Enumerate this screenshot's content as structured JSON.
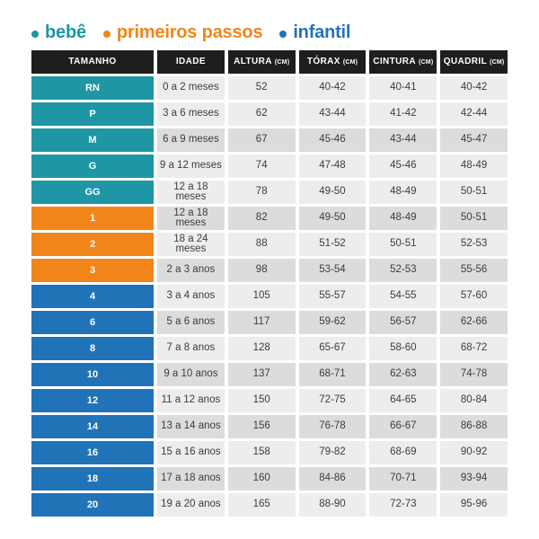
{
  "legend": {
    "items": [
      {
        "label": "bebê",
        "group": "bebe"
      },
      {
        "label": "primeiros passos",
        "group": "primeiros_passos"
      },
      {
        "label": "infantil",
        "group": "infantil"
      }
    ]
  },
  "colors": {
    "bebe": "#1E96A4",
    "primeiros_passos": "#F28519",
    "infantil": "#2173B8",
    "header_bg": "#1E1E1C",
    "header_text": "#FFFFFF",
    "size_text": "#FFFFFF",
    "cell_light": "#EDEDED",
    "cell_dark": "#DCDCDC",
    "cell_text": "#3C3C3C"
  },
  "chart_data": {
    "type": "table",
    "columns": [
      {
        "key": "size",
        "label": "TAMANHO",
        "unit": ""
      },
      {
        "key": "age",
        "label": "IDADE",
        "unit": ""
      },
      {
        "key": "altura",
        "label": "ALTURA",
        "unit": "(CM)"
      },
      {
        "key": "torax",
        "label": "TÓRAX",
        "unit": "(CM)"
      },
      {
        "key": "cintura",
        "label": "CINTURA",
        "unit": "(CM)"
      },
      {
        "key": "quadril",
        "label": "QUADRIL",
        "unit": "(CM)"
      }
    ],
    "rows": [
      {
        "size": "RN",
        "group": "bebe",
        "age": "0 a 2 meses",
        "altura": "52",
        "torax": "40-42",
        "cintura": "40-41",
        "quadril": "40-42",
        "shade": "light"
      },
      {
        "size": "P",
        "group": "bebe",
        "age": "3 a 6 meses",
        "altura": "62",
        "torax": "43-44",
        "cintura": "41-42",
        "quadril": "42-44",
        "shade": "light"
      },
      {
        "size": "M",
        "group": "bebe",
        "age": "6 a 9 meses",
        "altura": "67",
        "torax": "45-46",
        "cintura": "43-44",
        "quadril": "45-47",
        "shade": "dark"
      },
      {
        "size": "G",
        "group": "bebe",
        "age": "9 a 12 meses",
        "altura": "74",
        "torax": "47-48",
        "cintura": "45-46",
        "quadril": "48-49",
        "shade": "light"
      },
      {
        "size": "GG",
        "group": "bebe",
        "age": "12 a 18 meses",
        "altura": "78",
        "torax": "49-50",
        "cintura": "48-49",
        "quadril": "50-51",
        "shade": "light"
      },
      {
        "size": "1",
        "group": "primeiros_passos",
        "age": "12 a 18 meses",
        "altura": "82",
        "torax": "49-50",
        "cintura": "48-49",
        "quadril": "50-51",
        "shade": "dark"
      },
      {
        "size": "2",
        "group": "primeiros_passos",
        "age": "18 a 24 meses",
        "altura": "88",
        "torax": "51-52",
        "cintura": "50-51",
        "quadril": "52-53",
        "shade": "light"
      },
      {
        "size": "3",
        "group": "primeiros_passos",
        "age": "2 a 3 anos",
        "altura": "98",
        "torax": "53-54",
        "cintura": "52-53",
        "quadril": "55-56",
        "shade": "dark"
      },
      {
        "size": "4",
        "group": "infantil",
        "age": "3 a 4 anos",
        "altura": "105",
        "torax": "55-57",
        "cintura": "54-55",
        "quadril": "57-60",
        "shade": "light"
      },
      {
        "size": "6",
        "group": "infantil",
        "age": "5 a 6 anos",
        "altura": "117",
        "torax": "59-62",
        "cintura": "56-57",
        "quadril": "62-66",
        "shade": "dark"
      },
      {
        "size": "8",
        "group": "infantil",
        "age": "7 a 8 anos",
        "altura": "128",
        "torax": "65-67",
        "cintura": "58-60",
        "quadril": "68-72",
        "shade": "light"
      },
      {
        "size": "10",
        "group": "infantil",
        "age": "9 a 10 anos",
        "altura": "137",
        "torax": "68-71",
        "cintura": "62-63",
        "quadril": "74-78",
        "shade": "dark"
      },
      {
        "size": "12",
        "group": "infantil",
        "age": "11 a 12 anos",
        "altura": "150",
        "torax": "72-75",
        "cintura": "64-65",
        "quadril": "80-84",
        "shade": "light"
      },
      {
        "size": "14",
        "group": "infantil",
        "age": "13 a 14 anos",
        "altura": "156",
        "torax": "76-78",
        "cintura": "66-67",
        "quadril": "86-88",
        "shade": "dark"
      },
      {
        "size": "16",
        "group": "infantil",
        "age": "15 a 16 anos",
        "altura": "158",
        "torax": "79-82",
        "cintura": "68-69",
        "quadril": "90-92",
        "shade": "light"
      },
      {
        "size": "18",
        "group": "infantil",
        "age": "17 a 18 anos",
        "altura": "160",
        "torax": "84-86",
        "cintura": "70-71",
        "quadril": "93-94",
        "shade": "dark"
      },
      {
        "size": "20",
        "group": "infantil",
        "age": "19 a 20 anos",
        "altura": "165",
        "torax": "88-90",
        "cintura": "72-73",
        "quadril": "95-96",
        "shade": "light"
      }
    ]
  }
}
